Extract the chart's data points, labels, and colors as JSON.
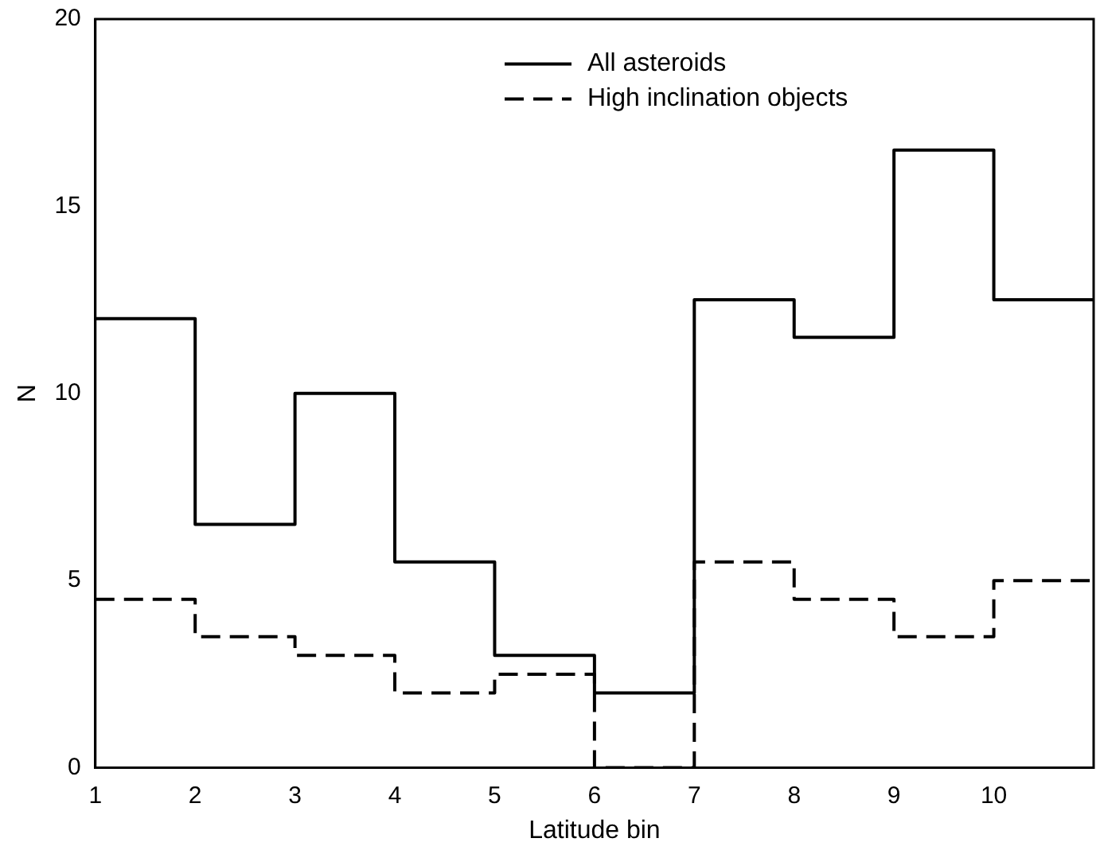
{
  "chart_data": {
    "type": "step",
    "xlabel": "Latitude bin",
    "ylabel": "N",
    "x": [
      1,
      2,
      3,
      4,
      5,
      6,
      7,
      8,
      9,
      10,
      11
    ],
    "series": [
      {
        "name": "All asteroids",
        "color": "#000000",
        "line_style": "solid",
        "values": [
          12,
          6.5,
          10,
          5.5,
          3,
          2,
          12.5,
          11.5,
          16.5,
          12.5,
          12.5
        ]
      },
      {
        "name": "High inclination objects",
        "color": "#000000",
        "line_style": "dashed",
        "values": [
          4.5,
          3.5,
          3,
          2,
          2.5,
          0,
          5.5,
          4.5,
          3.5,
          5,
          5
        ]
      }
    ],
    "xlim": [
      1,
      11
    ],
    "xticks": [
      1,
      2,
      3,
      4,
      5,
      6,
      7,
      8,
      9,
      10
    ],
    "ylim": [
      0,
      20
    ],
    "yticks": [
      0,
      5,
      10,
      15,
      20
    ],
    "grid": false,
    "legend": "top",
    "marker": "none"
  }
}
